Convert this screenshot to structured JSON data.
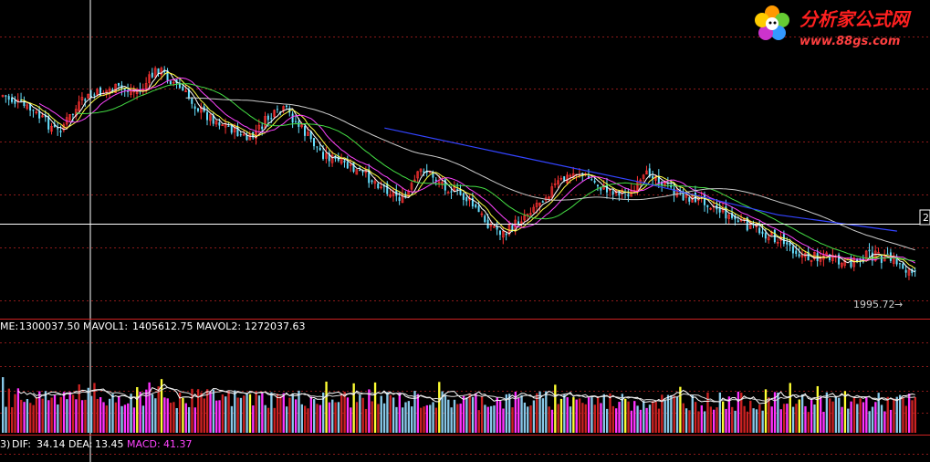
{
  "watermark": {
    "title": "分析家公式网",
    "url": "www.88gs.com"
  },
  "price_panel": {
    "last_price_label": "1995.72",
    "arrow_glyph": "→",
    "right_edge_label": "2"
  },
  "volume_panel": {
    "prefix": "ME:",
    "vol_value": "1300037.50",
    "mavol1_label": "MAVOL1:",
    "mavol1_value": "1405612.75",
    "mavol2_label": "MAVOL2:",
    "mavol2_value": "1272037.63"
  },
  "macd_panel": {
    "prefix": "3)",
    "dif_label": "DIF:",
    "dif_value": "34.14",
    "dea_label": "DEA:",
    "dea_value": "13.45",
    "macd_label": "MACD:",
    "macd_value": "41.37"
  },
  "colors": {
    "background": "#000000",
    "grid": "#8b1a1a",
    "crosshair": "#ffffff",
    "candle_up": "#ff3333",
    "candle_down": "#66e0ff",
    "ma_white": "#ffffff",
    "ma_yellow": "#ffff44",
    "ma_magenta": "#ff44ff",
    "ma_green": "#44dd44",
    "ma_gray": "#cccccc",
    "ma_blue": "#3344ff",
    "vol_magenta": "#ff33ff",
    "vol_yellow": "#ffff33",
    "vol_red": "#cc2222",
    "vol_cyan": "#88c8e8",
    "dea_color": "#ffffff",
    "macd_color": "#ff44ff",
    "watermark_title": "#ff2020",
    "watermark_url": "#ff4040"
  },
  "chart_data": {
    "type": "candlestick",
    "title": "",
    "series": [
      {
        "name": "MAVOL1",
        "value": 1405612.75
      },
      {
        "name": "MAVOL2",
        "value": 1272037.63
      },
      {
        "name": "DIF",
        "value": 34.14
      },
      {
        "name": "DEA",
        "value": 13.45
      },
      {
        "name": "MACD",
        "value": 41.37
      }
    ],
    "last_price": 1995.72,
    "volume": 1300037.5,
    "price_path_shape": [
      [
        0,
        0.2
      ],
      [
        0.03,
        0.28
      ],
      [
        0.06,
        0.4
      ],
      [
        0.09,
        0.22
      ],
      [
        0.12,
        0.16
      ],
      [
        0.15,
        0.18
      ],
      [
        0.17,
        0.05
      ],
      [
        0.19,
        0.14
      ],
      [
        0.22,
        0.3
      ],
      [
        0.25,
        0.38
      ],
      [
        0.27,
        0.45
      ],
      [
        0.29,
        0.33
      ],
      [
        0.31,
        0.28
      ],
      [
        0.33,
        0.4
      ],
      [
        0.35,
        0.52
      ],
      [
        0.38,
        0.6
      ],
      [
        0.41,
        0.68
      ],
      [
        0.44,
        0.78
      ],
      [
        0.46,
        0.6
      ],
      [
        0.48,
        0.68
      ],
      [
        0.51,
        0.78
      ],
      [
        0.53,
        0.9
      ],
      [
        0.55,
        0.97
      ],
      [
        0.58,
        0.82
      ],
      [
        0.61,
        0.68
      ],
      [
        0.63,
        0.62
      ],
      [
        0.66,
        0.72
      ],
      [
        0.69,
        0.74
      ],
      [
        0.71,
        0.62
      ],
      [
        0.74,
        0.75
      ],
      [
        0.77,
        0.78
      ],
      [
        0.8,
        0.88
      ],
      [
        0.83,
        0.95
      ],
      [
        0.86,
        1.02
      ],
      [
        0.88,
        1.1
      ],
      [
        0.9,
        1.08
      ],
      [
        0.92,
        1.14
      ],
      [
        0.95,
        1.08
      ],
      [
        0.98,
        1.12
      ],
      [
        1.0,
        1.2
      ]
    ],
    "long_ma_shape": [
      [
        0.42,
        0.38
      ],
      [
        0.55,
        0.52
      ],
      [
        0.7,
        0.68
      ],
      [
        0.85,
        0.86
      ],
      [
        0.98,
        0.95
      ]
    ]
  }
}
